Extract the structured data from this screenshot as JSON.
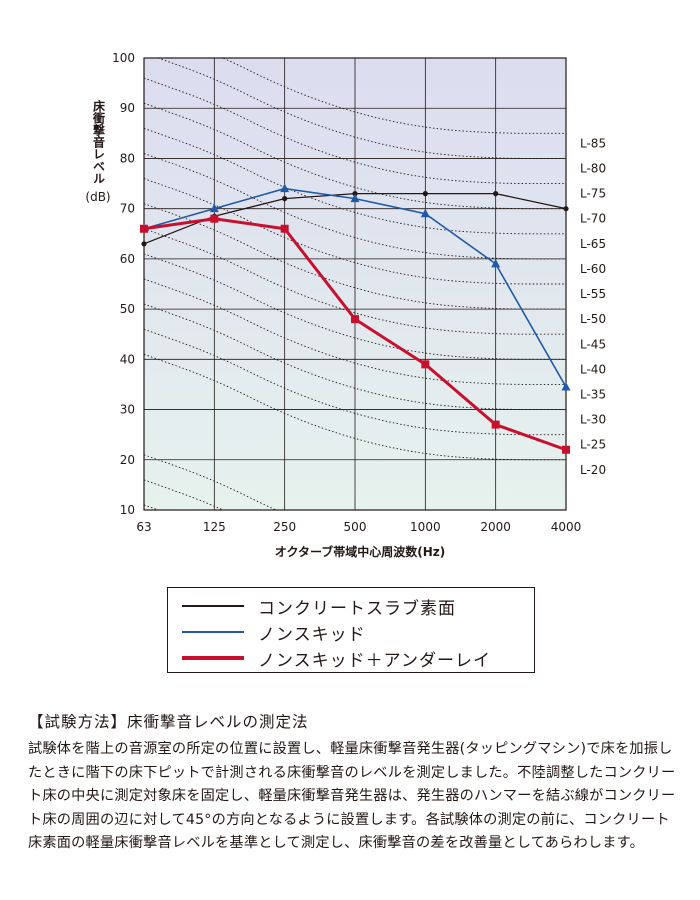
{
  "chart_data": {
    "type": "line",
    "ylabel": "床衝撃音レベル",
    "yunit": "(dB)",
    "xlabel": "オクターブ帯域中心周波数(Hz)",
    "categories": [
      "63",
      "125",
      "250",
      "500",
      "1000",
      "2000",
      "4000"
    ],
    "y_ticks": [
      "100",
      "90",
      "80",
      "70",
      "60",
      "50",
      "40",
      "30",
      "20",
      "10"
    ],
    "ylim": [
      10,
      100
    ],
    "grid": true,
    "legend_position": "bottom",
    "series": [
      {
        "name": "コンクリートスラブ素面",
        "color": "#231815",
        "marker": "circle",
        "values": [
          63,
          68.5,
          72,
          73,
          73,
          73,
          70
        ]
      },
      {
        "name": "ノンスキッド",
        "color": "#1f5aa8",
        "marker": "triangle",
        "values": [
          66,
          70,
          74,
          72,
          69,
          59,
          34.5
        ]
      },
      {
        "name": "ノンスキッド＋アンダーレイ",
        "color": "#c8102e",
        "marker": "square",
        "values": [
          66,
          68,
          66,
          48,
          39,
          27,
          22
        ]
      }
    ],
    "reference_curves": {
      "labels": [
        "L-85",
        "L-80",
        "L-75",
        "L-70",
        "L-65",
        "L-60",
        "L-55",
        "L-50",
        "L-45",
        "L-40",
        "L-35",
        "L-30",
        "L-25",
        "L-20"
      ],
      "values_at_4000": [
        85,
        80,
        75,
        70,
        65,
        60,
        55,
        50,
        45,
        40,
        35,
        30,
        25,
        20
      ],
      "shape": [
        21,
        16,
        9,
        4,
        1,
        0,
        0
      ]
    }
  },
  "text": {
    "section_title": "【試験方法】床衝撃音レベルの測定法",
    "body": "試験体を階上の音源室の所定の位置に設置し、軽量床衝撃音発生器(タッピングマシン)で床を加振したときに階下の床下ピットで計測される床衝撃音のレベルを測定しました。不陸調整したコンクリート床の中央に測定対象床を固定し、軽量床衝撃音発生器は、発生器のハンマーを結ぶ線がコンクリート床の周囲の辺に対して45°の方向となるように設置します。各試験体の測定の前に、コンクリート床素面の軽量床衝撃音レベルを基準として測定し、床衝撃音の差を改善量としてあらわします。"
  }
}
